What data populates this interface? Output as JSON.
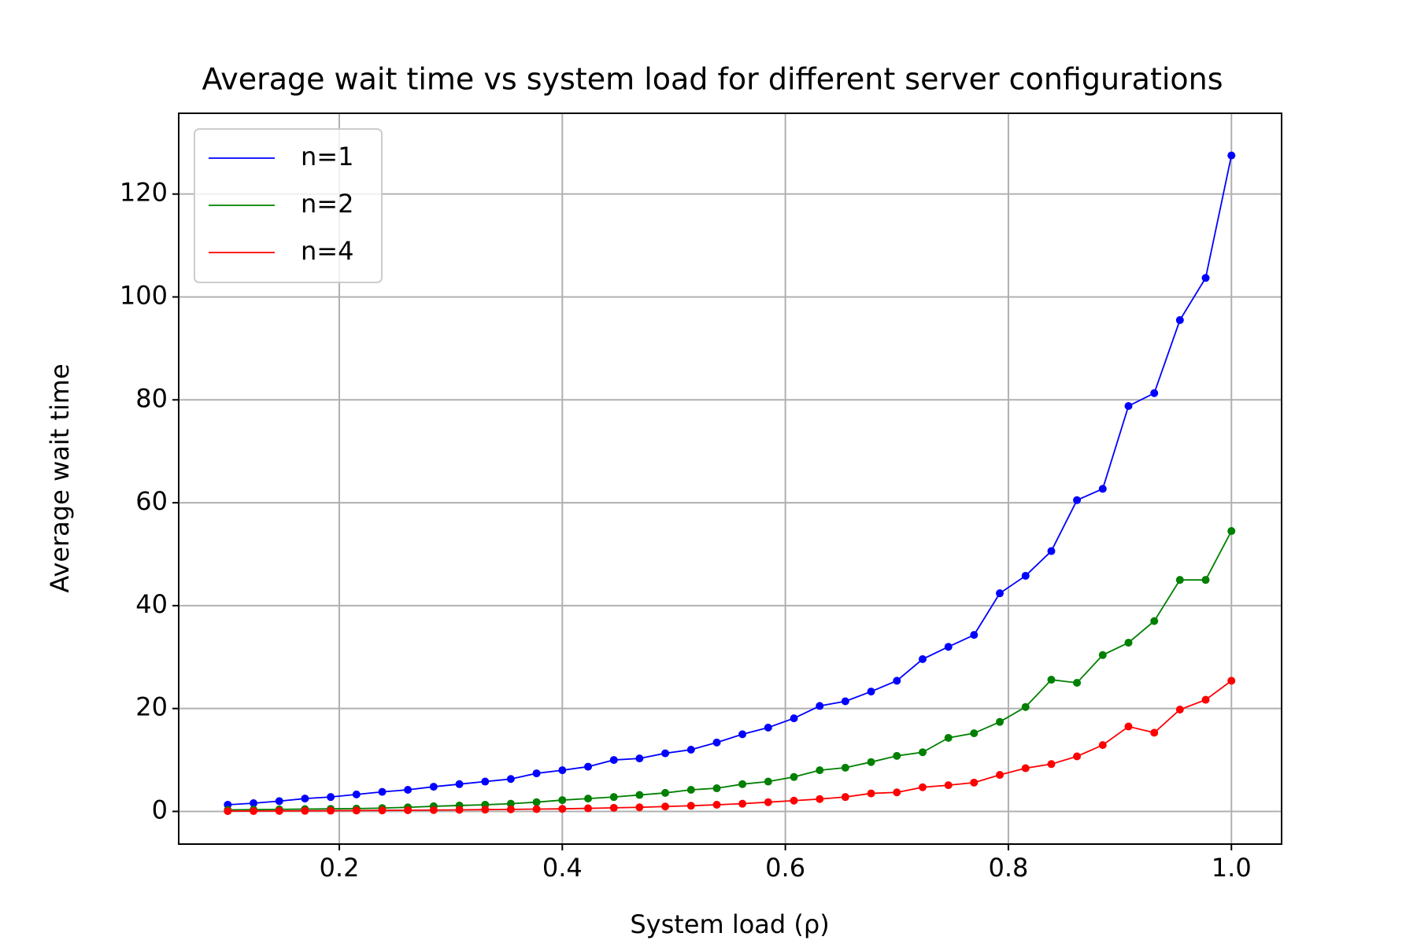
{
  "chart_data": {
    "type": "line",
    "title": "Average wait time vs system load for different server configurations",
    "x_label": "System load (ρ)",
    "y_label": "Average wait time",
    "x": [
      0.1,
      0.1231,
      0.1462,
      0.1692,
      0.1923,
      0.2154,
      0.2385,
      0.2615,
      0.2846,
      0.3077,
      0.3308,
      0.3538,
      0.3769,
      0.4,
      0.4231,
      0.4462,
      0.4692,
      0.4923,
      0.5154,
      0.5385,
      0.5615,
      0.5846,
      0.6077,
      0.6308,
      0.6538,
      0.6769,
      0.7,
      0.7231,
      0.7462,
      0.7692,
      0.7923,
      0.8154,
      0.8385,
      0.8615,
      0.8846,
      0.9077,
      0.9308,
      0.9538,
      0.9769,
      1.0
    ],
    "series": [
      {
        "name": "n=1",
        "color": "#0000ff",
        "values": [
          1.3,
          1.6,
          2.0,
          2.5,
          2.8,
          3.3,
          3.8,
          4.2,
          4.8,
          5.3,
          5.8,
          6.3,
          7.4,
          8.0,
          8.7,
          10.0,
          10.3,
          11.3,
          12.0,
          13.4,
          15.0,
          16.3,
          18.1,
          20.5,
          21.4,
          23.3,
          25.4,
          29.6,
          32.0,
          34.3,
          42.4,
          45.8,
          50.6,
          60.5,
          62.7,
          78.8,
          81.3,
          95.5,
          103.7,
          127.5
        ]
      },
      {
        "name": "n=2",
        "color": "#008000",
        "values": [
          0.3,
          0.35,
          0.4,
          0.45,
          0.5,
          0.55,
          0.65,
          0.8,
          1.0,
          1.15,
          1.3,
          1.5,
          1.8,
          2.2,
          2.5,
          2.8,
          3.2,
          3.6,
          4.2,
          4.5,
          5.3,
          5.8,
          6.7,
          8.0,
          8.5,
          9.6,
          10.8,
          11.5,
          14.3,
          15.2,
          17.4,
          20.3,
          25.6,
          25.0,
          30.4,
          32.8,
          37.0,
          45.0,
          45.0,
          54.5
        ]
      },
      {
        "name": "n=4",
        "color": "#ff0000",
        "values": [
          0.05,
          0.07,
          0.09,
          0.12,
          0.14,
          0.17,
          0.2,
          0.23,
          0.26,
          0.3,
          0.35,
          0.4,
          0.45,
          0.5,
          0.6,
          0.7,
          0.8,
          0.95,
          1.1,
          1.3,
          1.5,
          1.8,
          2.1,
          2.4,
          2.8,
          3.5,
          3.7,
          4.7,
          5.1,
          5.6,
          7.1,
          8.4,
          9.2,
          10.7,
          12.9,
          16.5,
          15.3,
          19.8,
          21.7,
          25.4
        ]
      }
    ],
    "xlim": [
      0.056,
      1.045
    ],
    "ylim": [
      -6.35,
      135.7
    ],
    "xticks": [
      {
        "value": 0.2,
        "label": "0.2"
      },
      {
        "value": 0.4,
        "label": "0.4"
      },
      {
        "value": 0.6,
        "label": "0.6"
      },
      {
        "value": 0.8,
        "label": "0.8"
      },
      {
        "value": 1.0,
        "label": "1.0"
      }
    ],
    "yticks": [
      0,
      20,
      40,
      60,
      80,
      100,
      120
    ],
    "grid": true,
    "legend": "upper left"
  }
}
